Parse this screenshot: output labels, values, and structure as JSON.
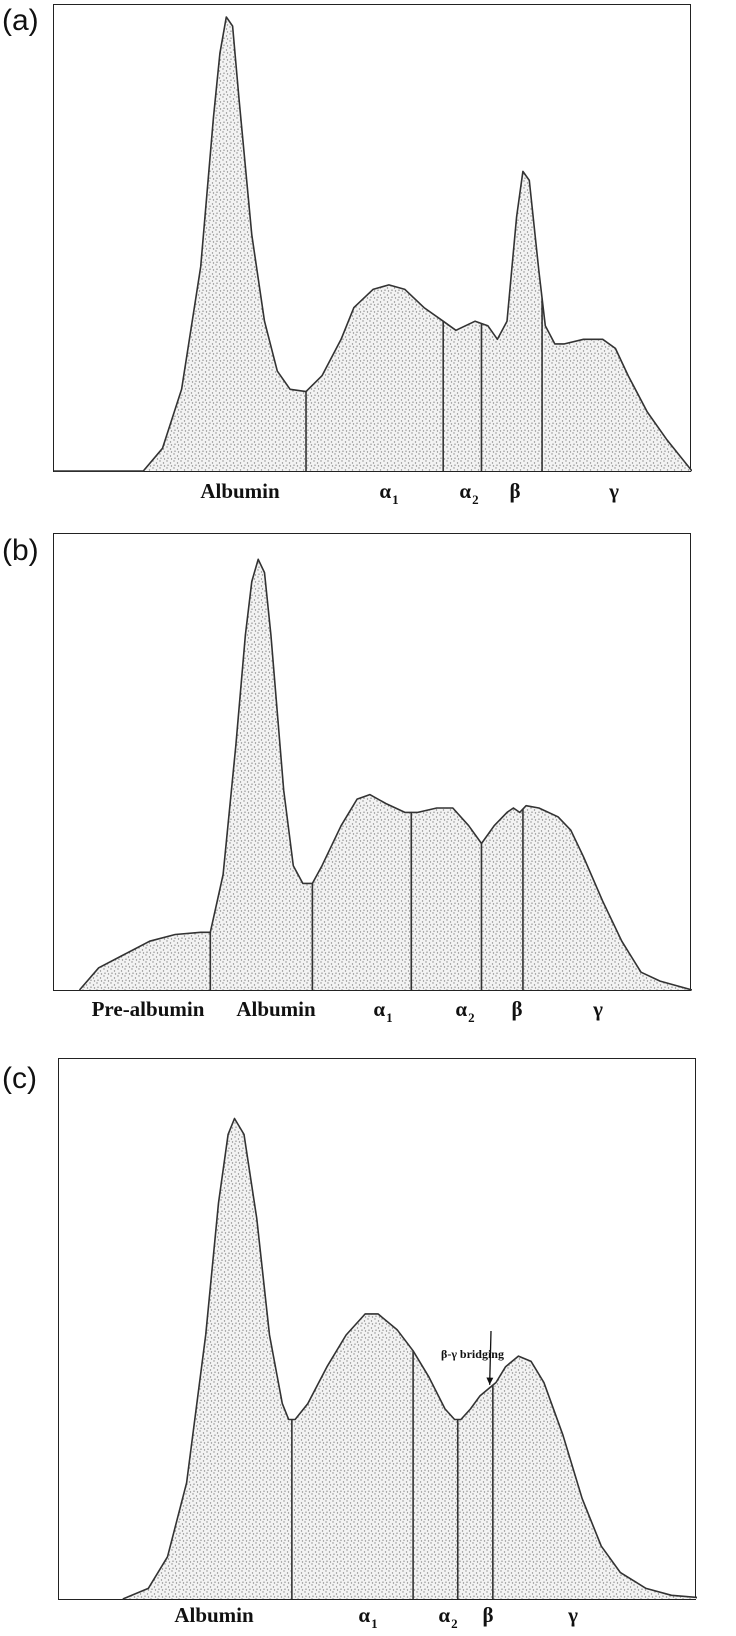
{
  "chart_data": [
    {
      "panel_label": "(a)",
      "type": "area",
      "categories": [
        "Albumin",
        "α1",
        "α2",
        "β",
        "γ"
      ],
      "category_labels": [
        {
          "base": "Albumin",
          "sub": ""
        },
        {
          "base": "α",
          "sub": "1"
        },
        {
          "base": "α",
          "sub": "2"
        },
        {
          "base": "β",
          "sub": ""
        },
        {
          "base": "γ",
          "sub": ""
        }
      ],
      "x_range": [
        0,
        100
      ],
      "y_range": [
        0,
        100
      ],
      "profile": [
        [
          0,
          0
        ],
        [
          14,
          0
        ],
        [
          17,
          5
        ],
        [
          20,
          18
        ],
        [
          23,
          45
        ],
        [
          25,
          78
        ],
        [
          26,
          92
        ],
        [
          27,
          100
        ],
        [
          28,
          98
        ],
        [
          29,
          82
        ],
        [
          31,
          52
        ],
        [
          33,
          33
        ],
        [
          35,
          22
        ],
        [
          37,
          18
        ],
        [
          39.5,
          17.5
        ],
        [
          42,
          21
        ],
        [
          45,
          29
        ],
        [
          47,
          36
        ],
        [
          50,
          40
        ],
        [
          52.5,
          41
        ],
        [
          55,
          40
        ],
        [
          58,
          36
        ],
        [
          61,
          33
        ],
        [
          63,
          31
        ],
        [
          66,
          33
        ],
        [
          68,
          32
        ],
        [
          69.5,
          29
        ],
        [
          71,
          33
        ],
        [
          72.5,
          56
        ],
        [
          73.5,
          66
        ],
        [
          74.5,
          64
        ],
        [
          76,
          44
        ],
        [
          77,
          32
        ],
        [
          78.5,
          28
        ],
        [
          80,
          28
        ],
        [
          83,
          29
        ],
        [
          86,
          29
        ],
        [
          88,
          27
        ],
        [
          90,
          21
        ],
        [
          93,
          13
        ],
        [
          96,
          7
        ],
        [
          100,
          0
        ]
      ],
      "dividers": [
        39.5,
        61,
        67,
        76.5
      ],
      "fill": "#c8c8c8",
      "stroke": "#333333"
    },
    {
      "panel_label": "(b)",
      "type": "area",
      "categories": [
        "Pre-albumin",
        "Albumin",
        "α1",
        "α2",
        "β",
        "γ"
      ],
      "category_labels": [
        {
          "base": "Pre-albumin",
          "sub": ""
        },
        {
          "base": "Albumin",
          "sub": ""
        },
        {
          "base": "α",
          "sub": "1"
        },
        {
          "base": "α",
          "sub": "2"
        },
        {
          "base": "β",
          "sub": ""
        },
        {
          "base": "γ",
          "sub": ""
        }
      ],
      "x_range": [
        0,
        100
      ],
      "y_range": [
        0,
        100
      ],
      "profile": [
        [
          4,
          0
        ],
        [
          7,
          5
        ],
        [
          11,
          8
        ],
        [
          15,
          11
        ],
        [
          19,
          12.5
        ],
        [
          23,
          13
        ],
        [
          24.5,
          13
        ],
        [
          26.5,
          26
        ],
        [
          28.5,
          55
        ],
        [
          30,
          80
        ],
        [
          31,
          92
        ],
        [
          32,
          97
        ],
        [
          33,
          94
        ],
        [
          34,
          80
        ],
        [
          36,
          45
        ],
        [
          37.5,
          28
        ],
        [
          39,
          24
        ],
        [
          40.5,
          24
        ],
        [
          42,
          28
        ],
        [
          45,
          37
        ],
        [
          47.5,
          43
        ],
        [
          49.5,
          44
        ],
        [
          52,
          42
        ],
        [
          55,
          40
        ],
        [
          57,
          40
        ],
        [
          60,
          41
        ],
        [
          62.5,
          41
        ],
        [
          65,
          37
        ],
        [
          67,
          33
        ],
        [
          69,
          37
        ],
        [
          71,
          40
        ],
        [
          72,
          41
        ],
        [
          73,
          40
        ],
        [
          74,
          41.5
        ],
        [
          76,
          41
        ],
        [
          79,
          39
        ],
        [
          81,
          36
        ],
        [
          83,
          30
        ],
        [
          86,
          20
        ],
        [
          89,
          11
        ],
        [
          92,
          4
        ],
        [
          95,
          2
        ],
        [
          100,
          0
        ]
      ],
      "dividers": [
        24.5,
        40.5,
        56,
        67,
        73.5
      ],
      "fill": "#c8c8c8",
      "stroke": "#333333"
    },
    {
      "panel_label": "(c)",
      "type": "area",
      "categories": [
        "Albumin",
        "α1",
        "α2",
        "β",
        "γ"
      ],
      "category_labels": [
        {
          "base": "Albumin",
          "sub": ""
        },
        {
          "base": "α",
          "sub": "1"
        },
        {
          "base": "α",
          "sub": "2"
        },
        {
          "base": "β",
          "sub": ""
        },
        {
          "base": "γ",
          "sub": ""
        }
      ],
      "x_range": [
        0,
        100
      ],
      "y_range": [
        0,
        100
      ],
      "profile": [
        [
          10,
          0
        ],
        [
          14,
          2
        ],
        [
          17,
          8
        ],
        [
          20,
          22
        ],
        [
          23,
          50
        ],
        [
          25,
          75
        ],
        [
          26.5,
          88
        ],
        [
          27.5,
          91
        ],
        [
          29,
          88
        ],
        [
          31,
          72
        ],
        [
          33,
          50
        ],
        [
          35,
          37
        ],
        [
          36,
          34
        ],
        [
          37,
          34
        ],
        [
          39,
          37
        ],
        [
          42,
          44
        ],
        [
          45,
          50
        ],
        [
          48,
          54
        ],
        [
          50,
          54
        ],
        [
          53,
          51
        ],
        [
          55.5,
          47
        ],
        [
          58,
          42
        ],
        [
          60.5,
          36
        ],
        [
          62,
          34
        ],
        [
          63,
          34
        ],
        [
          64.5,
          36
        ],
        [
          66,
          38.5
        ],
        [
          67.5,
          40
        ],
        [
          68.5,
          41
        ],
        [
          70,
          44
        ],
        [
          72,
          46
        ],
        [
          74,
          45
        ],
        [
          76,
          41
        ],
        [
          79,
          31
        ],
        [
          82,
          19
        ],
        [
          85,
          10
        ],
        [
          88,
          5
        ],
        [
          92,
          2
        ],
        [
          96,
          0.7
        ],
        [
          100,
          0.3
        ]
      ],
      "dividers": [
        36.5,
        55.5,
        62.5,
        68
      ],
      "annotations": [
        {
          "text": "β-γ bridging",
          "target_x": 67.5
        }
      ],
      "fill": "#d2d2d2",
      "stroke": "#333333"
    }
  ]
}
